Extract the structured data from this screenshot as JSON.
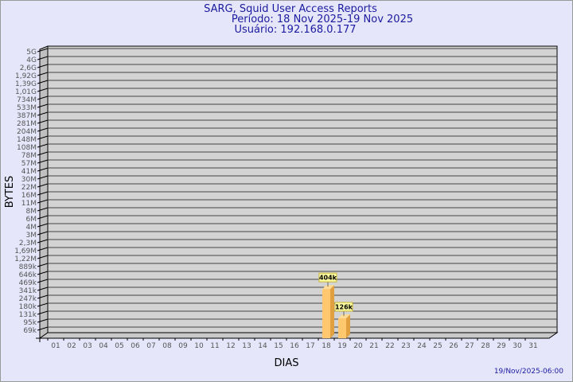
{
  "title": "SARG, Squid User Access Reports",
  "period": "Período: 18 Nov 2025-19 Nov 2025",
  "user": "Usuário: 192.168.0.177",
  "footer_date": "19/Nov/2025-06:00",
  "chart_data": {
    "type": "bar",
    "xlabel": "DIAS",
    "ylabel": "BYTES",
    "y_scale": "log",
    "grid": true,
    "categories": [
      "01",
      "02",
      "03",
      "04",
      "05",
      "06",
      "07",
      "08",
      "09",
      "10",
      "11",
      "12",
      "13",
      "14",
      "15",
      "16",
      "17",
      "18",
      "19",
      "20",
      "21",
      "22",
      "23",
      "24",
      "25",
      "26",
      "27",
      "28",
      "29",
      "30",
      "31"
    ],
    "y_tick_labels": [
      "69k",
      "95k",
      "131k",
      "180k",
      "247k",
      "341k",
      "469k",
      "646k",
      "889k",
      "1,22M",
      "1,69M",
      "2,3M",
      "3M",
      "4M",
      "6M",
      "8M",
      "11M",
      "16M",
      "22M",
      "30M",
      "41M",
      "57M",
      "78M",
      "108M",
      "148M",
      "204M",
      "281M",
      "387M",
      "533M",
      "734M",
      "1,01G",
      "1,39G",
      "1,92G",
      "2,6G",
      "4G",
      "5G"
    ],
    "bars": [
      {
        "category": "18",
        "value": 404000,
        "label": "404k"
      },
      {
        "category": "19",
        "value": 126000,
        "label": "126k"
      }
    ],
    "colors": {
      "bar_front": "#ffc86e",
      "bar_side": "#e0a040",
      "bar_top": "#ffdc96",
      "background": "#e6e6fa",
      "plot": "#d3d3d3",
      "title": "#1a1aa0"
    }
  }
}
